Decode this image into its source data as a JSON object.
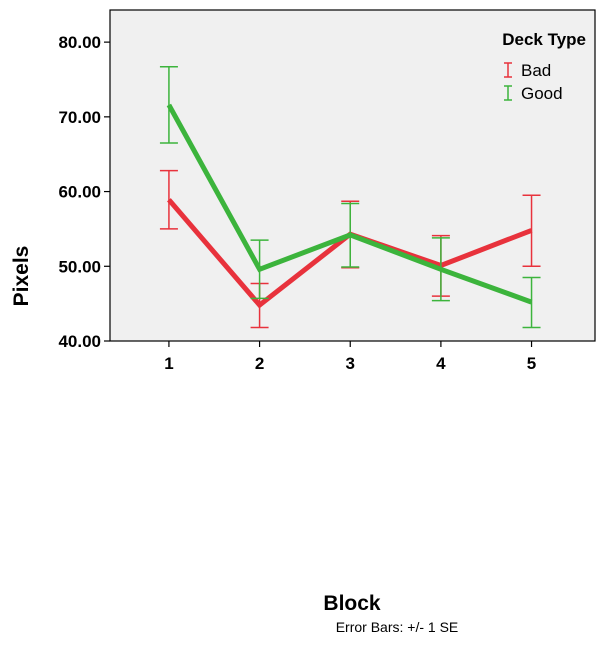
{
  "chart_data": {
    "type": "line",
    "xlabel": "Block",
    "ylabel": "Pixels",
    "x": [
      1,
      2,
      3,
      4,
      5
    ],
    "x_tick_labels": [
      "1",
      "2",
      "3",
      "4",
      "5"
    ],
    "xlim": [
      0.35,
      5.7
    ],
    "ylim": [
      40,
      84.3
    ],
    "y_ticks": [
      40,
      50,
      60,
      70,
      80
    ],
    "y_tick_labels": [
      "40.00",
      "50.00",
      "60.00",
      "70.00",
      "80.00"
    ],
    "grid": false,
    "legend": {
      "title": "Deck Type",
      "placement": "top-right"
    },
    "footnote": "Error Bars: +/- 1 SE",
    "plot_background": "#f0f0f0",
    "series": [
      {
        "name": "Bad",
        "color": "#e8323c",
        "values": [
          58.9,
          44.8,
          54.3,
          50.1,
          54.8
        ],
        "error_low": [
          55.0,
          41.8,
          49.8,
          46.0,
          50.0
        ],
        "error_high": [
          62.8,
          47.7,
          58.7,
          54.1,
          59.5
        ]
      },
      {
        "name": "Good",
        "color": "#3cb43c",
        "values": [
          71.6,
          49.6,
          54.2,
          49.6,
          45.2
        ],
        "error_low": [
          66.5,
          45.7,
          49.9,
          45.4,
          41.8
        ],
        "error_high": [
          76.7,
          53.5,
          58.4,
          53.8,
          48.5
        ]
      }
    ]
  }
}
